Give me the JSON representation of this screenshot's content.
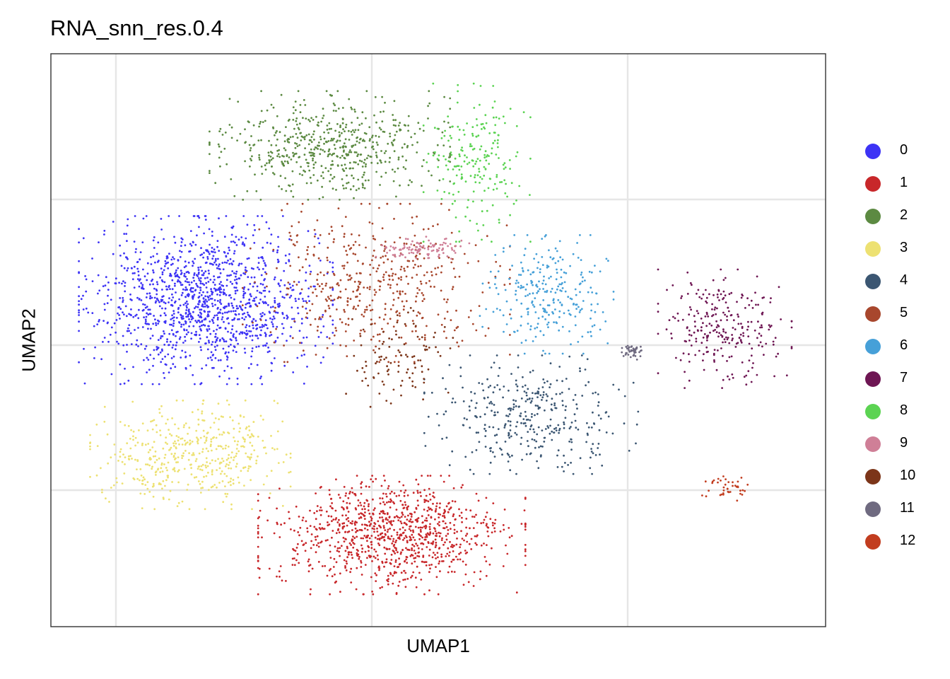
{
  "chart_data": {
    "type": "scatter",
    "title": "RNA_snn_res.0.4",
    "xlabel": "UMAP1",
    "ylabel": "UMAP2",
    "grid": true,
    "axis_ticks_shown": false,
    "legend_position": "right",
    "xlim": [
      0,
      100
    ],
    "ylim": [
      0,
      100
    ],
    "clusters": [
      {
        "name": "0",
        "color": "#3D33F5",
        "centroid": [
          20,
          57
        ],
        "spread": [
          9.5,
          8.5
        ],
        "share": 0.25
      },
      {
        "name": "1",
        "color": "#C8272A",
        "centroid": [
          44,
          16
        ],
        "spread": [
          10,
          6
        ],
        "share": 0.19
      },
      {
        "name": "2",
        "color": "#5C8A42",
        "centroid": [
          36,
          84
        ],
        "spread": [
          9,
          5.5
        ],
        "share": 0.11
      },
      {
        "name": "3",
        "color": "#EDE172",
        "centroid": [
          18,
          30
        ],
        "spread": [
          7.5,
          5.5
        ],
        "share": 0.09
      },
      {
        "name": "4",
        "color": "#3B5672",
        "centroid": [
          62,
          37
        ],
        "spread": [
          8,
          6
        ],
        "share": 0.07
      },
      {
        "name": "5",
        "color": "#A8472D",
        "centroid": [
          42,
          60
        ],
        "spread": [
          10,
          8
        ],
        "share": 0.09
      },
      {
        "name": "6",
        "color": "#46A0D8",
        "centroid": [
          64,
          58
        ],
        "spread": [
          5,
          6
        ],
        "share": 0.05
      },
      {
        "name": "7",
        "color": "#6E1653",
        "centroid": [
          87,
          52
        ],
        "spread": [
          5,
          6
        ],
        "share": 0.05
      },
      {
        "name": "8",
        "color": "#5BD352",
        "centroid": [
          55,
          81
        ],
        "spread": [
          4,
          8
        ],
        "share": 0.04
      },
      {
        "name": "9",
        "color": "#CF7F97",
        "centroid": [
          48,
          66
        ],
        "spread": [
          3.5,
          1.2
        ],
        "share": 0.02
      },
      {
        "name": "10",
        "color": "#7C3519",
        "centroid": [
          45,
          47
        ],
        "spread": [
          4,
          5
        ],
        "share": 0.02
      },
      {
        "name": "11",
        "color": "#6F6A80",
        "centroid": [
          75,
          48
        ],
        "spread": [
          1,
          0.8
        ],
        "share": 0.004
      },
      {
        "name": "12",
        "color": "#C23D1F",
        "centroid": [
          87,
          24
        ],
        "spread": [
          2,
          1.5
        ],
        "share": 0.003
      }
    ]
  }
}
